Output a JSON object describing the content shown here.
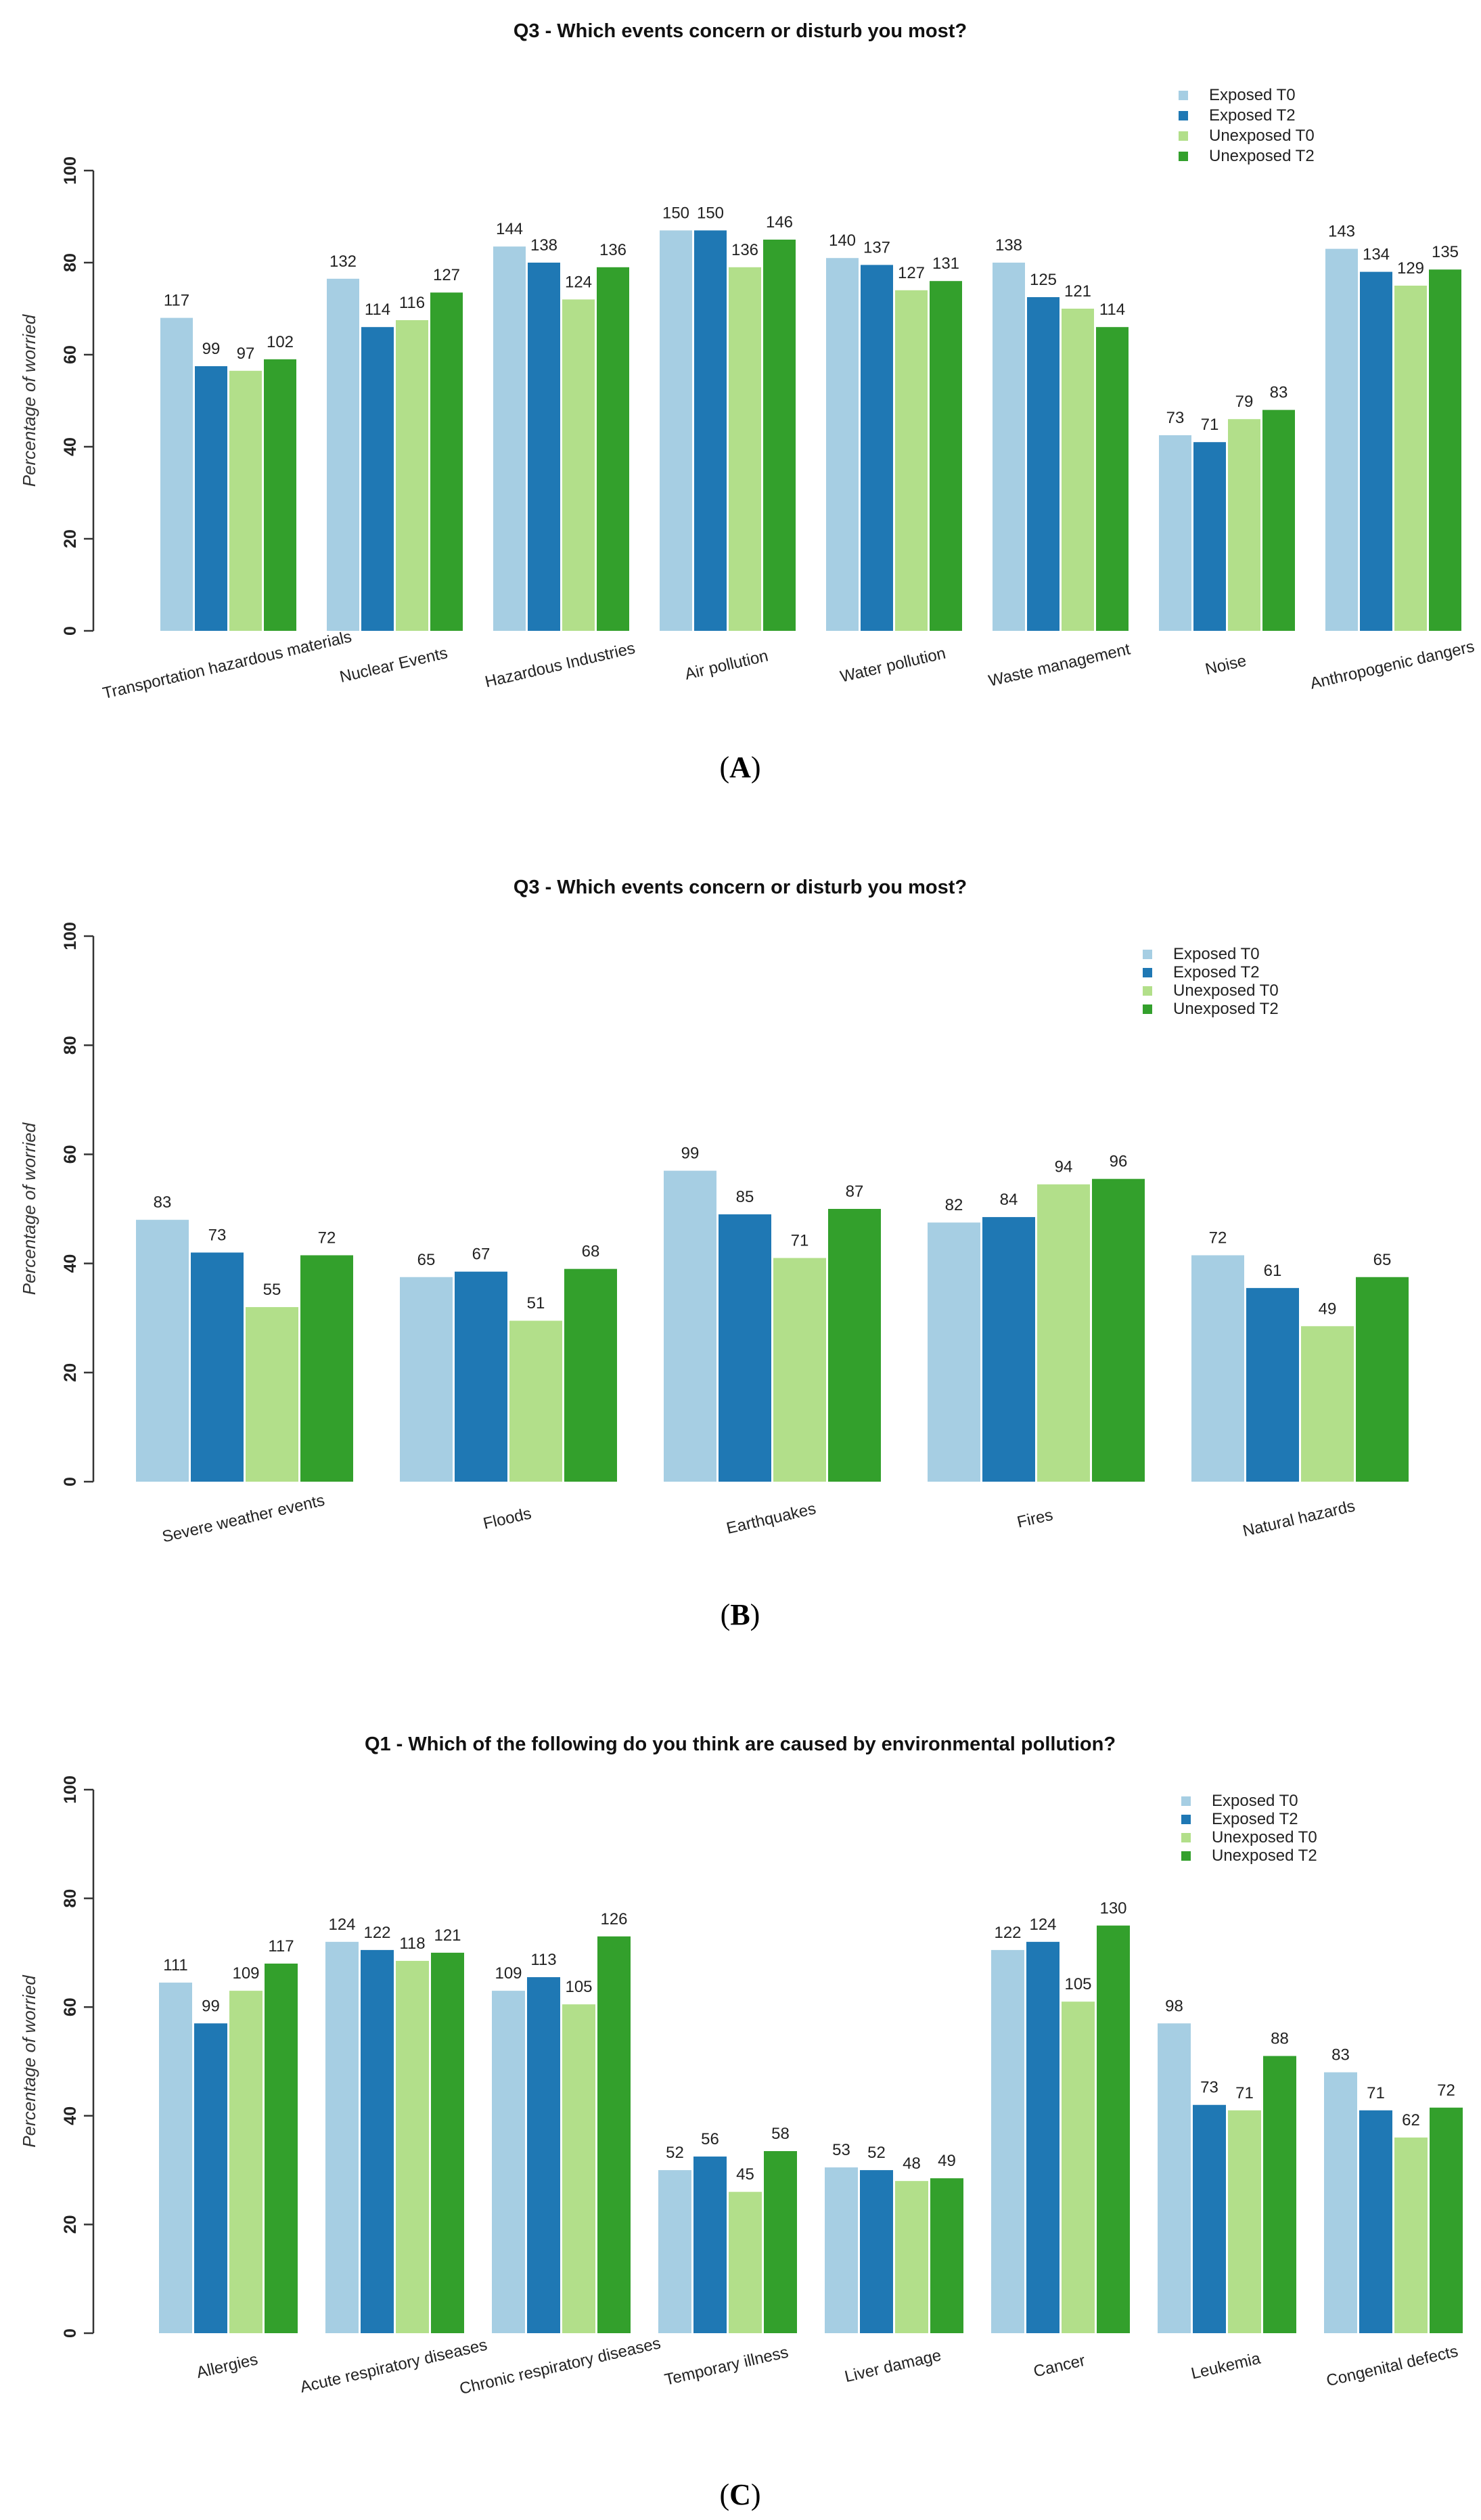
{
  "chart_data": [
    {
      "type": "bar",
      "panel_label": "A",
      "title": "Q3 - Which events concern or disturb you most?",
      "xlabel": "",
      "ylabel": "Percentage of worried",
      "ylim": [
        0,
        100
      ],
      "yticks": [
        0,
        20,
        40,
        60,
        80,
        100
      ],
      "ytick_labels": [
        "0",
        "20",
        "40",
        "60",
        "80",
        "100"
      ],
      "grid": false,
      "legend_position": "top-right",
      "categories": [
        "Transportation hazardous materials",
        "Nuclear Events",
        "Hazardous Industries",
        "Air pollution",
        "Water pollution",
        "Waste management",
        "Noise",
        "Anthropogenic dangers"
      ],
      "series": [
        {
          "name": "Exposed T0",
          "color": "#a6cee3",
          "values": [
            68,
            76.5,
            83.5,
            87,
            81,
            80,
            42.5,
            83
          ],
          "labels": [
            "117",
            "132",
            "144",
            "150",
            "140",
            "138",
            "73",
            "143"
          ]
        },
        {
          "name": "Exposed T2",
          "color": "#1f78b4",
          "values": [
            57.5,
            66,
            80,
            87,
            79.5,
            72.5,
            41,
            78
          ],
          "labels": [
            "99",
            "114",
            "138",
            "150",
            "137",
            "125",
            "71",
            "134"
          ]
        },
        {
          "name": "Unexposed T0",
          "color": "#b2df8a",
          "values": [
            56.5,
            67.5,
            72,
            79,
            74,
            70,
            46,
            75
          ],
          "labels": [
            "97",
            "116",
            "124",
            "136",
            "127",
            "121",
            "79",
            "129"
          ]
        },
        {
          "name": "Unexposed T2",
          "color": "#33a02c",
          "values": [
            59,
            73.5,
            79,
            85,
            76,
            66,
            48,
            78.5
          ],
          "labels": [
            "102",
            "127",
            "136",
            "146",
            "131",
            "114",
            "83",
            "135"
          ]
        }
      ]
    },
    {
      "type": "bar",
      "panel_label": "B",
      "title": "Q3 - Which events concern or disturb you most?",
      "xlabel": "",
      "ylabel": "Percentage of worried",
      "ylim": [
        0,
        100
      ],
      "yticks": [
        0,
        20,
        40,
        60,
        80,
        100
      ],
      "ytick_labels": [
        "0",
        "20",
        "40",
        "60",
        "80",
        "100"
      ],
      "grid": false,
      "legend_position": "top-right",
      "categories": [
        "Severe weather events",
        "Floods",
        "Earthquakes",
        "Fires",
        "Natural hazards"
      ],
      "series": [
        {
          "name": "Exposed T0",
          "color": "#a6cee3",
          "values": [
            48,
            37.5,
            57,
            47.5,
            41.5
          ],
          "labels": [
            "83",
            "65",
            "99",
            "82",
            "72"
          ]
        },
        {
          "name": "Exposed T2",
          "color": "#1f78b4",
          "values": [
            42,
            38.5,
            49,
            48.5,
            35.5
          ],
          "labels": [
            "73",
            "67",
            "85",
            "84",
            "61"
          ]
        },
        {
          "name": "Unexposed T0",
          "color": "#b2df8a",
          "values": [
            32,
            29.5,
            41,
            54.5,
            28.5
          ],
          "labels": [
            "55",
            "51",
            "71",
            "94",
            "49"
          ]
        },
        {
          "name": "Unexposed T2",
          "color": "#33a02c",
          "values": [
            41.5,
            39,
            50,
            55.5,
            37.5
          ],
          "labels": [
            "72",
            "68",
            "87",
            "96",
            "65"
          ]
        }
      ]
    },
    {
      "type": "bar",
      "panel_label": "C",
      "title": "Q1 - Which of the following do you think are caused by environmental pollution?",
      "xlabel": "",
      "ylabel": "Percentage of worried",
      "ylim": [
        0,
        100
      ],
      "yticks": [
        0,
        20,
        40,
        60,
        80,
        100
      ],
      "ytick_labels": [
        "0",
        "20",
        "40",
        "60",
        "80",
        "100"
      ],
      "grid": false,
      "legend_position": "top-right",
      "categories": [
        "Allergies",
        "Acute respiratory diseases",
        "Chronic respiratory diseases",
        "Temporary illness",
        "Liver damage",
        "Cancer",
        "Leukemia",
        "Congenital defects"
      ],
      "series": [
        {
          "name": "Exposed T0",
          "color": "#a6cee3",
          "values": [
            64.5,
            72,
            63,
            30,
            30.5,
            70.5,
            57,
            48
          ],
          "labels": [
            "111",
            "124",
            "109",
            "52",
            "53",
            "122",
            "98",
            "83"
          ]
        },
        {
          "name": "Exposed T2",
          "color": "#1f78b4",
          "values": [
            57,
            70.5,
            65.5,
            32.5,
            30,
            72,
            42,
            41
          ],
          "labels": [
            "99",
            "122",
            "113",
            "56",
            "52",
            "124",
            "73",
            "71"
          ]
        },
        {
          "name": "Unexposed T0",
          "color": "#b2df8a",
          "values": [
            63,
            68.5,
            60.5,
            26,
            28,
            61,
            41,
            36
          ],
          "labels": [
            "109",
            "118",
            "105",
            "45",
            "48",
            "105",
            "71",
            "62"
          ]
        },
        {
          "name": "Unexposed T2",
          "color": "#33a02c",
          "values": [
            68,
            70,
            73,
            33.5,
            28.5,
            75,
            51,
            41.5
          ],
          "labels": [
            "117",
            "121",
            "126",
            "58",
            "49",
            "130",
            "88",
            "72"
          ]
        }
      ]
    }
  ]
}
